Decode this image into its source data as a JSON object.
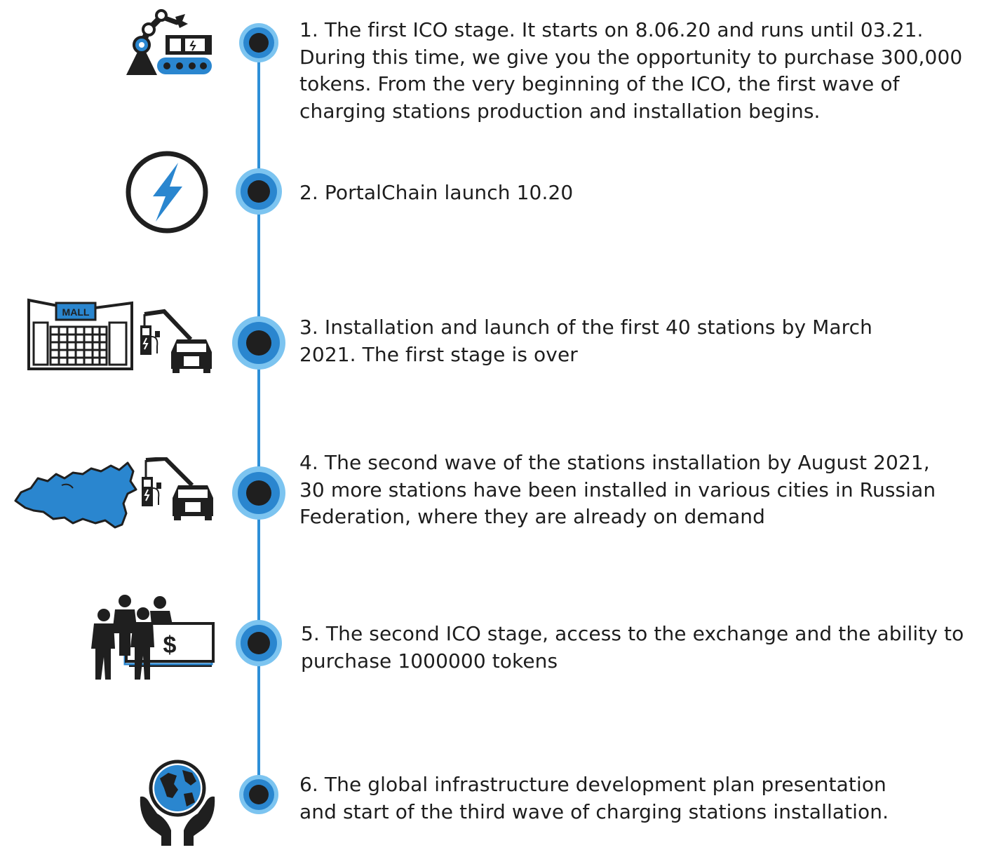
{
  "colors": {
    "accent": "#2d8fd8",
    "accent_light": "#7cc4f0",
    "dark": "#1f1f1f"
  },
  "steps": [
    {
      "icon": "factory-robot-conveyor-icon",
      "text": "1. The first ICO stage. It starts on 8.06.20 and runs until 03.21.\nDuring this time, we give you the opportunity to purchase 300,000\ntokens. From the very beginning of the ICO, the first wave of\ncharging stations production and installation begins."
    },
    {
      "icon": "lightning-circle-icon",
      "text": "2. PortalChain launch 10.20"
    },
    {
      "icon": "mall-charging-station-icon",
      "mall_sign": "MALL",
      "text": "3. Installation and launch of the first 40 stations by March\n2021. The first stage is over"
    },
    {
      "icon": "russia-map-charging-station-icon",
      "text": "4. The second wave of  the stations installation by August 2021,\n30 more stations have been installed in various cities in Russian\nFederation, where they are already on demand"
    },
    {
      "icon": "investors-banknote-icon",
      "text": "5. The second ICO stage, access to the exchange and the ability to\npurchase 1000000 tokens"
    },
    {
      "icon": "globe-in-hands-icon",
      "text": "6. The global infrastructure development plan presentation\nand start of the third wave of charging stations installation."
    }
  ]
}
